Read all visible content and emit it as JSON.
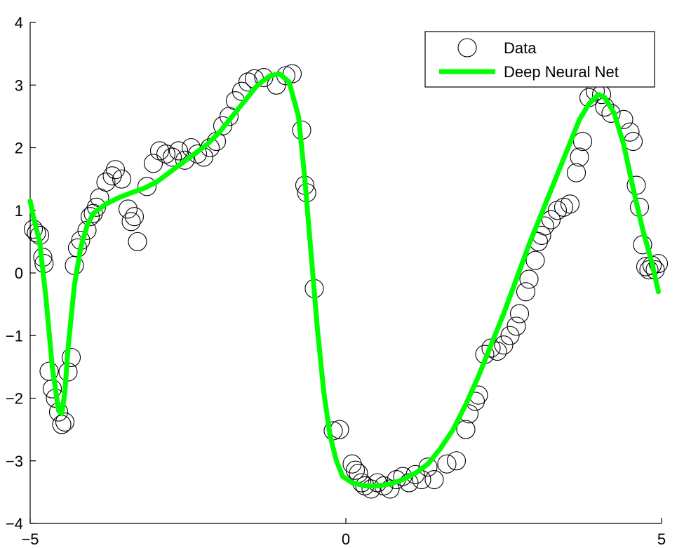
{
  "chart_data": {
    "type": "scatter",
    "title": "",
    "xlabel": "",
    "ylabel": "",
    "xlim": [
      -5,
      5
    ],
    "ylim": [
      -4,
      4
    ],
    "x_ticks": [
      "−5",
      "0",
      "5"
    ],
    "y_ticks": [
      "4",
      "3",
      "2",
      "1",
      "0",
      "−1",
      "−2",
      "−3",
      "−4"
    ],
    "grid": false,
    "legend_position": "top-right",
    "series": [
      {
        "name": "Data",
        "kind": "scatter",
        "marker": "open-circle",
        "color": "#000000",
        "points": [
          [
            -4.95,
            0.7
          ],
          [
            -4.9,
            0.64
          ],
          [
            -4.85,
            0.6
          ],
          [
            -4.8,
            0.25
          ],
          [
            -4.78,
            0.15
          ],
          [
            -4.7,
            -1.57
          ],
          [
            -4.65,
            -1.85
          ],
          [
            -4.6,
            -2.0
          ],
          [
            -4.55,
            -2.22
          ],
          [
            -4.5,
            -2.42
          ],
          [
            -4.45,
            -2.38
          ],
          [
            -4.4,
            -1.58
          ],
          [
            -4.35,
            -1.35
          ],
          [
            -4.3,
            0.12
          ],
          [
            -4.25,
            0.4
          ],
          [
            -4.2,
            0.52
          ],
          [
            -4.1,
            0.68
          ],
          [
            -4.05,
            0.9
          ],
          [
            -4.0,
            0.95
          ],
          [
            -3.95,
            1.05
          ],
          [
            -3.9,
            1.2
          ],
          [
            -3.8,
            1.45
          ],
          [
            -3.7,
            1.55
          ],
          [
            -3.65,
            1.65
          ],
          [
            -3.55,
            1.5
          ],
          [
            -3.45,
            1.02
          ],
          [
            -3.4,
            0.82
          ],
          [
            -3.35,
            0.9
          ],
          [
            -3.3,
            0.5
          ],
          [
            -3.15,
            1.38
          ],
          [
            -3.05,
            1.75
          ],
          [
            -2.95,
            1.95
          ],
          [
            -2.85,
            1.9
          ],
          [
            -2.75,
            1.85
          ],
          [
            -2.65,
            1.95
          ],
          [
            -2.55,
            1.8
          ],
          [
            -2.45,
            2.0
          ],
          [
            -2.35,
            1.9
          ],
          [
            -2.25,
            1.85
          ],
          [
            -2.15,
            2.0
          ],
          [
            -2.05,
            2.1
          ],
          [
            -1.95,
            2.35
          ],
          [
            -1.85,
            2.5
          ],
          [
            -1.75,
            2.75
          ],
          [
            -1.65,
            2.9
          ],
          [
            -1.55,
            3.05
          ],
          [
            -1.45,
            3.1
          ],
          [
            -1.3,
            3.12
          ],
          [
            -1.1,
            3.0
          ],
          [
            -0.95,
            3.15
          ],
          [
            -0.85,
            3.18
          ],
          [
            -0.7,
            2.28
          ],
          [
            -0.65,
            1.4
          ],
          [
            -0.62,
            1.28
          ],
          [
            -0.5,
            -0.25
          ],
          [
            -0.2,
            -2.52
          ],
          [
            -0.1,
            -2.5
          ],
          [
            0.1,
            -3.05
          ],
          [
            0.15,
            -3.15
          ],
          [
            0.2,
            -3.2
          ],
          [
            0.25,
            -3.35
          ],
          [
            0.3,
            -3.4
          ],
          [
            0.4,
            -3.45
          ],
          [
            0.5,
            -3.35
          ],
          [
            0.6,
            -3.4
          ],
          [
            0.7,
            -3.45
          ],
          [
            0.8,
            -3.3
          ],
          [
            0.9,
            -3.25
          ],
          [
            1.0,
            -3.35
          ],
          [
            1.1,
            -3.22
          ],
          [
            1.2,
            -3.3
          ],
          [
            1.3,
            -3.1
          ],
          [
            1.4,
            -3.3
          ],
          [
            1.6,
            -3.05
          ],
          [
            1.75,
            -3.0
          ],
          [
            1.9,
            -2.5
          ],
          [
            1.95,
            -2.25
          ],
          [
            2.05,
            -2.05
          ],
          [
            2.1,
            -1.95
          ],
          [
            2.2,
            -1.3
          ],
          [
            2.3,
            -1.2
          ],
          [
            2.4,
            -1.25
          ],
          [
            2.5,
            -1.15
          ],
          [
            2.6,
            -1.0
          ],
          [
            2.7,
            -0.85
          ],
          [
            2.75,
            -0.65
          ],
          [
            2.85,
            -0.3
          ],
          [
            2.9,
            -0.1
          ],
          [
            3.0,
            0.2
          ],
          [
            3.05,
            0.5
          ],
          [
            3.1,
            0.6
          ],
          [
            3.15,
            0.75
          ],
          [
            3.25,
            0.85
          ],
          [
            3.35,
            1.0
          ],
          [
            3.45,
            1.05
          ],
          [
            3.55,
            1.1
          ],
          [
            3.65,
            1.6
          ],
          [
            3.7,
            1.85
          ],
          [
            3.75,
            2.1
          ],
          [
            3.85,
            2.8
          ],
          [
            3.95,
            2.9
          ],
          [
            4.05,
            2.85
          ],
          [
            4.1,
            2.65
          ],
          [
            4.2,
            2.55
          ],
          [
            4.4,
            2.45
          ],
          [
            4.5,
            2.25
          ],
          [
            4.55,
            2.1
          ],
          [
            4.6,
            1.4
          ],
          [
            4.65,
            1.05
          ],
          [
            4.7,
            0.45
          ],
          [
            4.75,
            0.1
          ],
          [
            4.8,
            0.05
          ],
          [
            4.85,
            0.12
          ],
          [
            4.9,
            0.05
          ],
          [
            4.95,
            0.15
          ]
        ]
      },
      {
        "name": "Deep Neural Net",
        "kind": "line",
        "color": "#00ff00",
        "points": [
          [
            -5.0,
            1.15
          ],
          [
            -4.95,
            0.9
          ],
          [
            -4.85,
            0.5
          ],
          [
            -4.75,
            -0.4
          ],
          [
            -4.65,
            -1.5
          ],
          [
            -4.55,
            -2.2
          ],
          [
            -4.5,
            -2.25
          ],
          [
            -4.45,
            -1.9
          ],
          [
            -4.4,
            -1.2
          ],
          [
            -4.3,
            -0.2
          ],
          [
            -4.2,
            0.4
          ],
          [
            -4.1,
            0.75
          ],
          [
            -4.0,
            0.95
          ],
          [
            -3.8,
            1.1
          ],
          [
            -3.6,
            1.2
          ],
          [
            -3.4,
            1.28
          ],
          [
            -3.2,
            1.35
          ],
          [
            -3.0,
            1.45
          ],
          [
            -2.8,
            1.6
          ],
          [
            -2.6,
            1.75
          ],
          [
            -2.4,
            1.9
          ],
          [
            -2.2,
            2.05
          ],
          [
            -2.0,
            2.25
          ],
          [
            -1.8,
            2.5
          ],
          [
            -1.6,
            2.75
          ],
          [
            -1.4,
            3.0
          ],
          [
            -1.2,
            3.15
          ],
          [
            -1.05,
            3.18
          ],
          [
            -0.9,
            3.05
          ],
          [
            -0.75,
            2.5
          ],
          [
            -0.65,
            1.5
          ],
          [
            -0.55,
            0.3
          ],
          [
            -0.45,
            -0.9
          ],
          [
            -0.35,
            -1.9
          ],
          [
            -0.25,
            -2.6
          ],
          [
            -0.15,
            -3.0
          ],
          [
            -0.05,
            -3.25
          ],
          [
            0.1,
            -3.35
          ],
          [
            0.3,
            -3.4
          ],
          [
            0.5,
            -3.4
          ],
          [
            0.7,
            -3.37
          ],
          [
            0.9,
            -3.3
          ],
          [
            1.1,
            -3.2
          ],
          [
            1.3,
            -3.05
          ],
          [
            1.5,
            -2.8
          ],
          [
            1.7,
            -2.5
          ],
          [
            1.9,
            -2.1
          ],
          [
            2.1,
            -1.65
          ],
          [
            2.3,
            -1.15
          ],
          [
            2.5,
            -0.65
          ],
          [
            2.7,
            -0.1
          ],
          [
            2.9,
            0.45
          ],
          [
            3.1,
            0.95
          ],
          [
            3.3,
            1.45
          ],
          [
            3.5,
            1.95
          ],
          [
            3.7,
            2.45
          ],
          [
            3.85,
            2.7
          ],
          [
            4.0,
            2.85
          ],
          [
            4.1,
            2.8
          ],
          [
            4.25,
            2.55
          ],
          [
            4.4,
            2.05
          ],
          [
            4.55,
            1.35
          ],
          [
            4.7,
            0.7
          ],
          [
            4.85,
            0.15
          ],
          [
            4.95,
            -0.3
          ]
        ]
      }
    ]
  },
  "colors": {
    "data_marker": "#000000",
    "fit_line": "#00ff00",
    "axes": "#000000",
    "background": "#ffffff"
  }
}
